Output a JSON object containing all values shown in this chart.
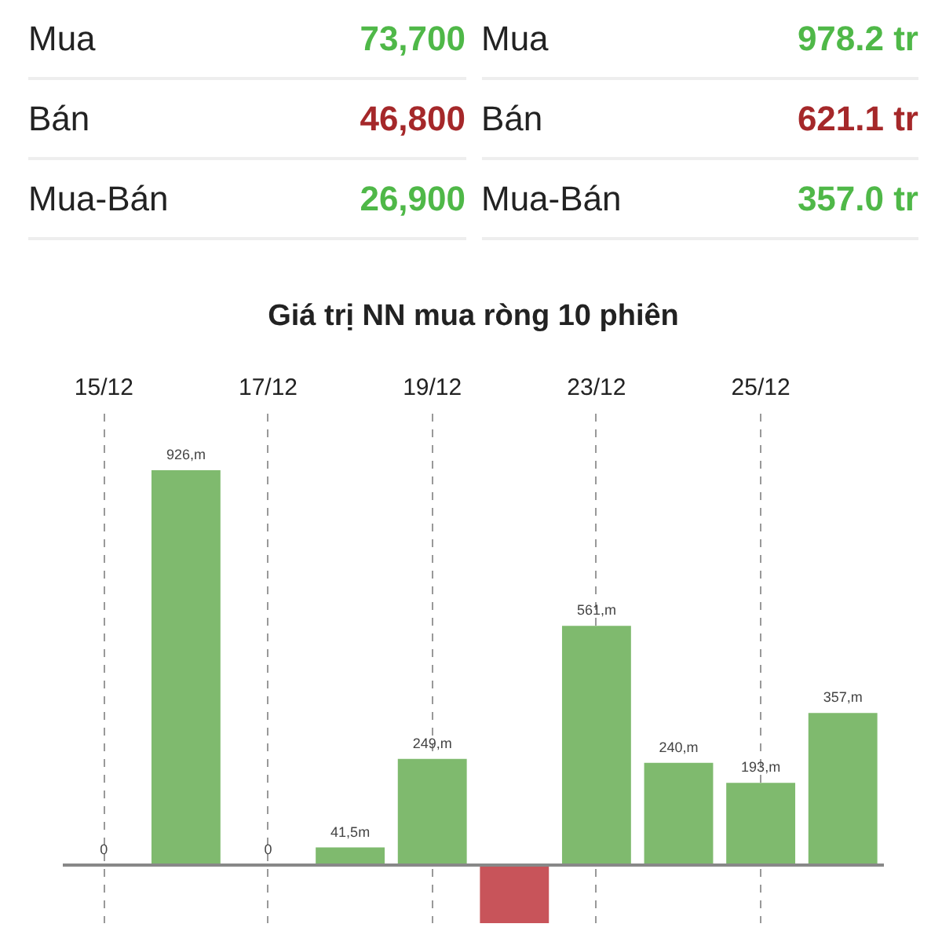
{
  "chart_data": [
    {
      "type": "other",
      "annotations": [
        "Mua",
        "73,700",
        "Bán",
        "46,800",
        "Mua-Bán",
        "26,900",
        "Mua",
        "978.2 tr",
        "Bán",
        "621.1 tr",
        "Mua-Bán",
        "357.0 tr"
      ],
      "colors": [
        "#4fb848",
        "#a5282a",
        "#4fb848",
        "#4fb848",
        "#a5282a",
        "#4fb848"
      ]
    },
    {
      "type": "bar",
      "title": "Giá trị NN mua ròng 10 phiên",
      "categories": [
        "15/12",
        null,
        "17/12",
        null,
        "19/12",
        null,
        "23/12",
        null,
        "25/12",
        null
      ],
      "values": [
        0,
        926,
        0,
        41.5,
        249,
        -136,
        561,
        240,
        193,
        357
      ],
      "colors": [
        "#7fba6e",
        "#7fba6e",
        "#7fba6e",
        "#7fba6e",
        "#7fba6e",
        "#c8545a",
        "#7fba6e",
        "#7fba6e",
        "#7fba6e",
        "#7fba6e"
      ],
      "value_labels": [
        "0",
        "926,m",
        "0",
        "41,5m",
        "249,m",
        null,
        "561,m",
        "240,m",
        "193,m",
        "357,m"
      ],
      "grid": "x"
    }
  ]
}
